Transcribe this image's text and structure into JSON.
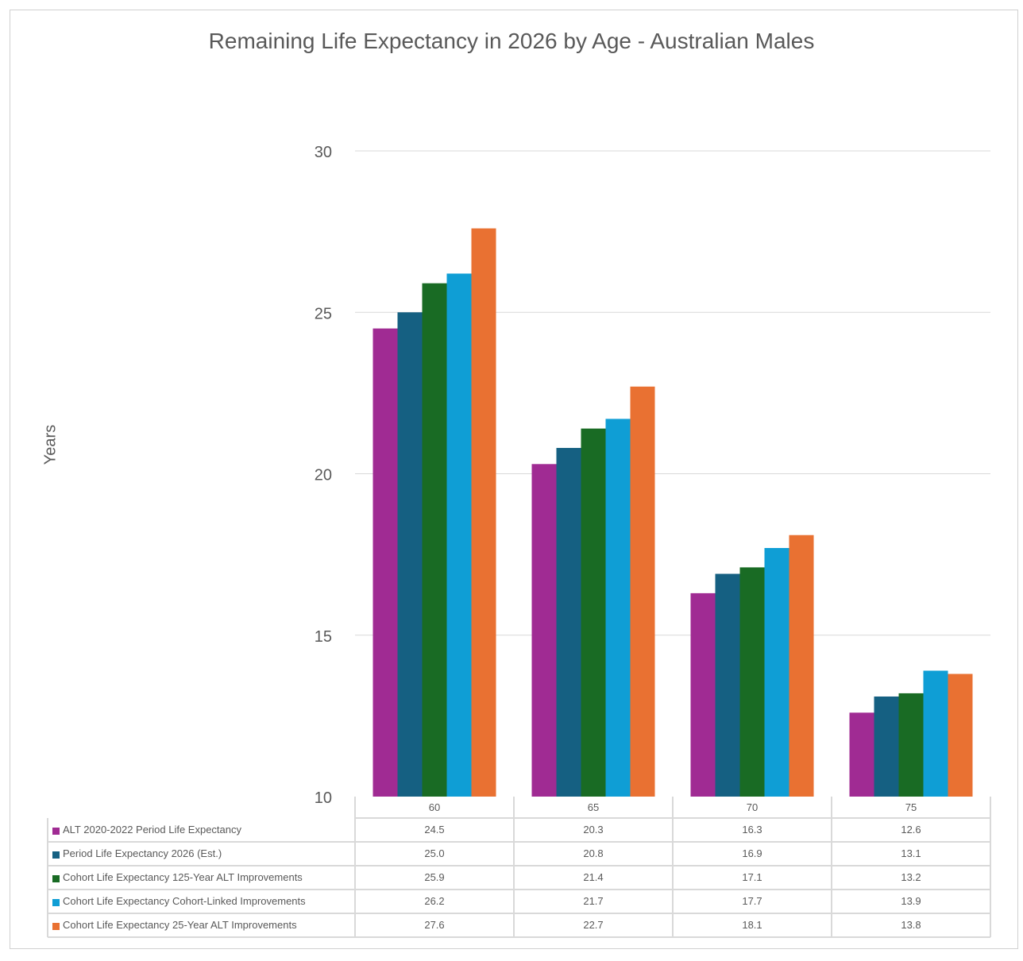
{
  "chart_data": {
    "type": "bar",
    "title": "Remaining Life Expectancy in 2026 by Age - Australian Males",
    "xlabel": "",
    "ylabel": "Years",
    "ylim": [
      10,
      30
    ],
    "yticks": [
      10,
      15,
      20,
      25,
      30
    ],
    "grid": true,
    "legend": "data-table-below",
    "categories": [
      "60",
      "65",
      "70",
      "75"
    ],
    "series": [
      {
        "name": "ALT 2020-2022 Period Life Expectancy",
        "color": "#A02B93",
        "values": [
          24.5,
          20.3,
          16.3,
          12.6
        ]
      },
      {
        "name": "Period Life Expectancy 2026 (Est.)",
        "color": "#156082",
        "values": [
          25.0,
          20.8,
          16.9,
          13.1
        ]
      },
      {
        "name": "Cohort Life Expectancy 125-Year ALT Improvements",
        "color": "#196B24",
        "values": [
          25.9,
          21.4,
          17.1,
          13.2
        ]
      },
      {
        "name": "Cohort Life Expectancy Cohort-Linked Improvements",
        "color": "#0F9ED5",
        "values": [
          26.2,
          21.7,
          17.7,
          13.9
        ]
      },
      {
        "name": "Cohort Life Expectancy 25-Year ALT Improvements",
        "color": "#E97132",
        "values": [
          27.6,
          22.7,
          18.1,
          13.8
        ]
      }
    ]
  }
}
